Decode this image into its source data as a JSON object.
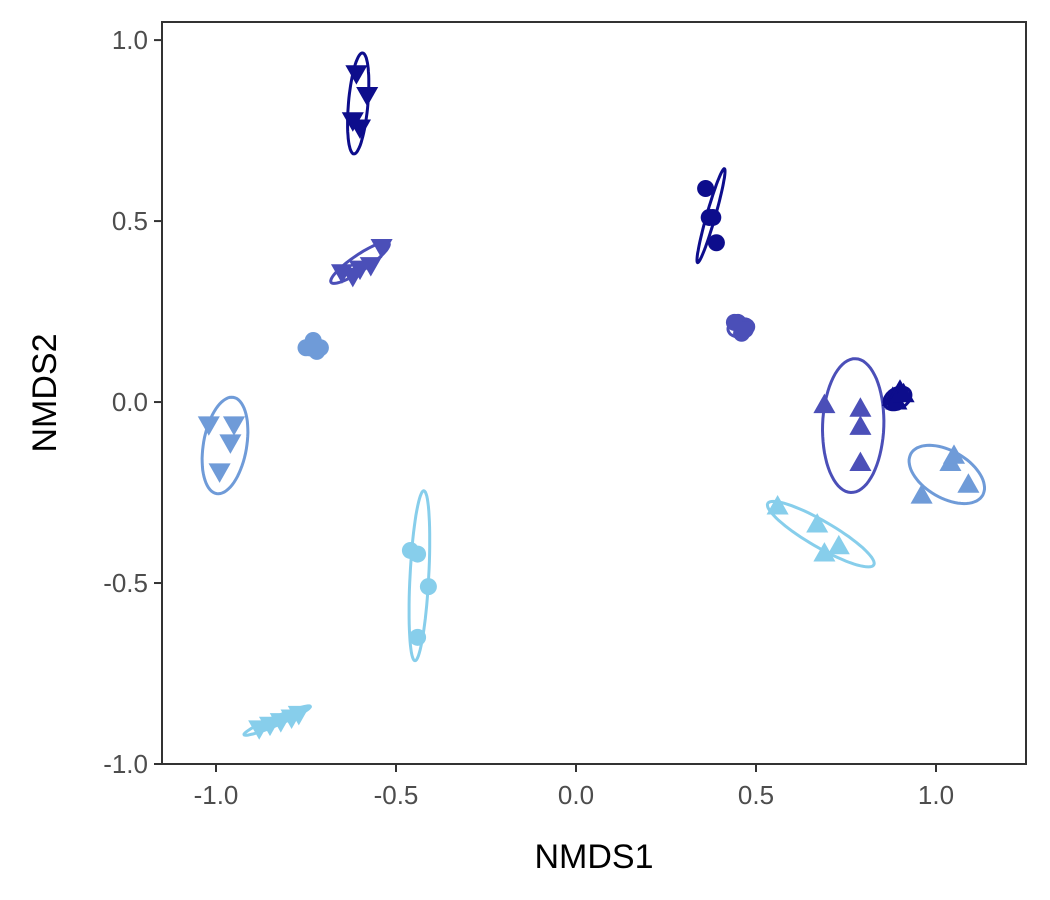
{
  "chart_data": {
    "type": "scatter",
    "title": "",
    "xlabel": "NMDS1",
    "ylabel": "NMDS2",
    "xlim": [
      -1.15,
      1.25
    ],
    "ylim": [
      -1.0,
      1.05
    ],
    "xticks": [
      -1.0,
      -0.5,
      0.0,
      0.5,
      1.0
    ],
    "xtick_labels": [
      "-1.0",
      "-0.5",
      "0.0",
      "0.5",
      "1.0"
    ],
    "yticks": [
      -1.0,
      -0.5,
      0.0,
      0.5,
      1.0
    ],
    "ytick_labels": [
      "-1.0",
      "-0.5",
      "0.0",
      "0.5",
      "1.0"
    ],
    "grid": false,
    "legend": "none",
    "groups": [
      {
        "color": "#0d0d8c",
        "shape": "triangle-down",
        "points": [
          [
            -0.61,
            0.91
          ],
          [
            -0.58,
            0.85
          ],
          [
            -0.62,
            0.78
          ],
          [
            -0.6,
            0.76
          ]
        ],
        "ellipse": {
          "cx": -0.605,
          "cy": 0.825,
          "rx": 0.14,
          "ry": 0.027,
          "angle_deg": 85
        }
      },
      {
        "color": "#4b4fb8",
        "shape": "triangle-down",
        "points": [
          [
            -0.65,
            0.36
          ],
          [
            -0.6,
            0.37
          ],
          [
            -0.57,
            0.38
          ],
          [
            -0.54,
            0.43
          ],
          [
            -0.62,
            0.35
          ]
        ],
        "ellipse": {
          "cx": -0.6,
          "cy": 0.385,
          "rx": 0.097,
          "ry": 0.022,
          "angle_deg": 34
        }
      },
      {
        "color": "#6f9bd8",
        "shape": "circle",
        "points": [
          [
            -0.74,
            0.15
          ],
          [
            -0.72,
            0.14
          ],
          [
            -0.73,
            0.17
          ],
          [
            -0.75,
            0.15
          ],
          [
            -0.71,
            0.15
          ]
        ],
        "ellipse": {
          "cx": -0.73,
          "cy": 0.15,
          "rx": 0.035,
          "ry": 0.02,
          "angle_deg": 0
        }
      },
      {
        "color": "#6f9bd8",
        "shape": "triangle-down",
        "points": [
          [
            -1.02,
            -0.06
          ],
          [
            -0.95,
            -0.06
          ],
          [
            -0.96,
            -0.11
          ],
          [
            -0.99,
            -0.19
          ]
        ],
        "ellipse": {
          "cx": -0.975,
          "cy": -0.12,
          "rx": 0.135,
          "ry": 0.06,
          "angle_deg": 80
        }
      },
      {
        "color": "#87ceeb",
        "shape": "circle",
        "points": [
          [
            -0.46,
            -0.41
          ],
          [
            -0.44,
            -0.42
          ],
          [
            -0.41,
            -0.51
          ],
          [
            -0.44,
            -0.65
          ]
        ],
        "ellipse": {
          "cx": -0.435,
          "cy": -0.48,
          "rx": 0.235,
          "ry": 0.026,
          "angle_deg": 87
        }
      },
      {
        "color": "#87ceeb",
        "shape": "triangle-down",
        "points": [
          [
            -0.88,
            -0.9
          ],
          [
            -0.85,
            -0.89
          ],
          [
            -0.82,
            -0.88
          ],
          [
            -0.79,
            -0.87
          ],
          [
            -0.77,
            -0.86
          ]
        ],
        "ellipse": {
          "cx": -0.83,
          "cy": -0.88,
          "rx": 0.1,
          "ry": 0.012,
          "angle_deg": 23
        }
      },
      {
        "color": "#0d0d8c",
        "shape": "circle",
        "points": [
          [
            0.36,
            0.59
          ],
          [
            0.37,
            0.51
          ],
          [
            0.38,
            0.51
          ],
          [
            0.39,
            0.44
          ]
        ],
        "ellipse": {
          "cx": 0.375,
          "cy": 0.515,
          "rx": 0.135,
          "ry": 0.012,
          "angle_deg": 74
        }
      },
      {
        "color": "#4b4fb8",
        "shape": "circle",
        "points": [
          [
            0.45,
            0.22
          ],
          [
            0.47,
            0.21
          ],
          [
            0.46,
            0.19
          ],
          [
            0.44,
            0.22
          ],
          [
            0.47,
            0.2
          ]
        ],
        "ellipse": {
          "cx": 0.458,
          "cy": 0.205,
          "rx": 0.036,
          "ry": 0.025,
          "angle_deg": 10
        }
      },
      {
        "color": "#4b4fb8",
        "shape": "triangle-up",
        "points": [
          [
            0.69,
            -0.01
          ],
          [
            0.79,
            -0.02
          ],
          [
            0.79,
            -0.07
          ],
          [
            0.79,
            -0.17
          ]
        ],
        "ellipse": {
          "cx": 0.77,
          "cy": -0.065,
          "rx": 0.185,
          "ry": 0.085,
          "angle_deg": 88
        }
      },
      {
        "color": "#0d0d8c",
        "shape": "triangle-up",
        "points": [
          [
            0.88,
            0.01
          ],
          [
            0.9,
            0.03
          ],
          [
            0.89,
            0.0
          ],
          [
            0.91,
            0.02
          ]
        ],
        "ellipse": {
          "cx": 0.893,
          "cy": 0.01,
          "rx": 0.04,
          "ry": 0.028,
          "angle_deg": 30
        }
      },
      {
        "color": "#87ceeb",
        "shape": "triangle-up",
        "points": [
          [
            0.56,
            -0.29
          ],
          [
            0.67,
            -0.34
          ],
          [
            0.69,
            -0.42
          ],
          [
            0.73,
            -0.4
          ]
        ],
        "ellipse": {
          "cx": 0.68,
          "cy": -0.365,
          "rx": 0.17,
          "ry": 0.036,
          "angle_deg": -30
        }
      },
      {
        "color": "#6f9bd8",
        "shape": "triangle-up",
        "points": [
          [
            0.96,
            -0.26
          ],
          [
            1.04,
            -0.17
          ],
          [
            1.05,
            -0.15
          ],
          [
            1.09,
            -0.23
          ]
        ],
        "ellipse": {
          "cx": 1.03,
          "cy": -0.2,
          "rx": 0.115,
          "ry": 0.065,
          "angle_deg": -30
        }
      }
    ]
  }
}
